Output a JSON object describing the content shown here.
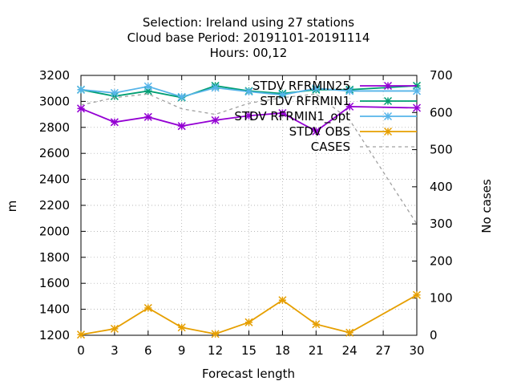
{
  "chart_data": {
    "type": "line",
    "title_lines": [
      "Selection: Ireland using    27 stations",
      "Cloud base   Period: 20191101-20191114",
      "Hours:  00,12"
    ],
    "xlabel": "Forecast length",
    "ylabel": "m",
    "y2label": "No cases",
    "x": [
      0,
      3,
      6,
      9,
      12,
      15,
      18,
      21,
      24,
      27,
      30
    ],
    "xlim": [
      0,
      30
    ],
    "ylim": [
      1200,
      3200
    ],
    "y2lim": [
      0,
      700
    ],
    "xticks": [
      0,
      3,
      6,
      9,
      12,
      15,
      18,
      21,
      24,
      27,
      30
    ],
    "yticks": [
      1200,
      1400,
      1600,
      1800,
      2000,
      2200,
      2400,
      2600,
      2800,
      3000,
      3200
    ],
    "y2ticks": [
      0,
      100,
      200,
      300,
      400,
      500,
      600,
      700
    ],
    "grid": true,
    "legend_position": "top-right",
    "series": [
      {
        "name": "STDV RFRMIN25",
        "axis": "y",
        "color": "#9400d3",
        "marker": "star",
        "dash": false,
        "x": [
          0,
          3,
          6,
          9,
          12,
          15,
          18,
          21,
          24,
          30
        ],
        "values": [
          2945,
          2840,
          2880,
          2810,
          2855,
          2890,
          2910,
          2770,
          2960,
          2950
        ]
      },
      {
        "name": "STDV RFRMIN1",
        "axis": "y",
        "color": "#009e73",
        "marker": "star",
        "dash": false,
        "x": [
          0,
          3,
          6,
          9,
          12,
          15,
          18,
          21,
          24,
          30
        ],
        "values": [
          3090,
          3040,
          3080,
          3030,
          3120,
          3080,
          3060,
          3090,
          3090,
          3120
        ]
      },
      {
        "name": "STDV RFRMIN1_opt",
        "axis": "y",
        "color": "#56b4e9",
        "marker": "star",
        "dash": false,
        "x": [
          0,
          3,
          6,
          9,
          12,
          15,
          18,
          21,
          24,
          30
        ],
        "values": [
          3090,
          3065,
          3115,
          3035,
          3105,
          3075,
          3050,
          3100,
          3080,
          3080
        ]
      },
      {
        "name": "STDV OBS",
        "axis": "y",
        "color": "#e69f00",
        "marker": "star",
        "dash": false,
        "x": [
          0,
          3,
          6,
          9,
          12,
          15,
          18,
          21,
          24,
          30
        ],
        "values": [
          1205,
          1250,
          1410,
          1260,
          1210,
          1300,
          1470,
          1285,
          1220,
          1510
        ]
      },
      {
        "name": "CASES",
        "axis": "y2",
        "color": "#a0a0a0",
        "marker": "none",
        "dash": true,
        "x": [
          0,
          3,
          6,
          9,
          12,
          15,
          18,
          21,
          24,
          30
        ],
        "values": [
          620,
          640,
          650,
          610,
          595,
          625,
          640,
          650,
          580,
          300
        ]
      }
    ]
  }
}
